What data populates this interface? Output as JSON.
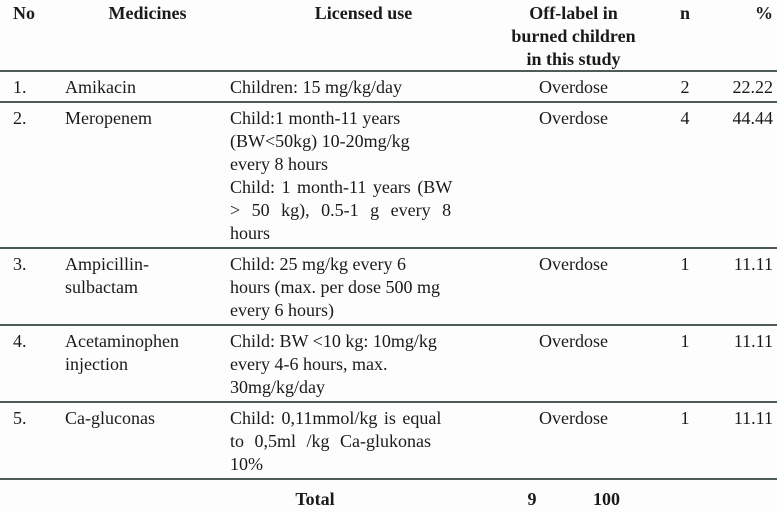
{
  "table": {
    "header": {
      "no": "No",
      "medicines": "Medicines",
      "licensed_use": "Licensed use",
      "off_label_lines": [
        "Off-label in",
        "burned children",
        "in this study"
      ],
      "n": "n",
      "pct": "%"
    },
    "rows": [
      {
        "no": "1.",
        "medicines": [
          "Amikacin"
        ],
        "licensed_use": [
          "Children: 15 mg/kg/day"
        ],
        "off_label": "Overdose",
        "n": "2",
        "pct": "22.22"
      },
      {
        "no": "2.",
        "medicines": [
          "Meropenem"
        ],
        "licensed_use": [
          "Child:1 month-11 years",
          "(BW<50kg) 10-20mg/kg",
          "every 8 hours",
          "Child: 1 month-11 years (BW",
          "> 50 kg), 0.5-1 g every 8",
          "hours"
        ],
        "off_label": "Overdose",
        "n": "4",
        "pct": "44.44"
      },
      {
        "no": "3.",
        "medicines": [
          "Ampicillin-",
          "sulbactam"
        ],
        "licensed_use": [
          "Child: 25 mg/kg every 6",
          "hours (max. per dose 500 mg",
          "every 6 hours)"
        ],
        "off_label": "Overdose",
        "n": "1",
        "pct": "11.11"
      },
      {
        "no": "4.",
        "medicines": [
          "Acetaminophen",
          "injection"
        ],
        "licensed_use": [
          "Child: BW <10 kg: 10mg/kg",
          "every 4-6 hours, max.",
          "30mg/kg/day"
        ],
        "off_label": "Overdose",
        "n": "1",
        "pct": "11.11"
      },
      {
        "no": "5.",
        "medicines": [
          "Ca-gluconas"
        ],
        "licensed_use": [
          "Child: 0,11mmol/kg is equal",
          "to 0,5ml /kg Ca-glukonas",
          "10%"
        ],
        "off_label": "Overdose",
        "n": "1",
        "pct": "11.11"
      }
    ],
    "total": {
      "label": "Total",
      "n": "9",
      "pct": "100"
    }
  },
  "colors": {
    "text": "#1a1a1a",
    "rule": "#4d5b5a",
    "background": "#fdfdfd"
  }
}
